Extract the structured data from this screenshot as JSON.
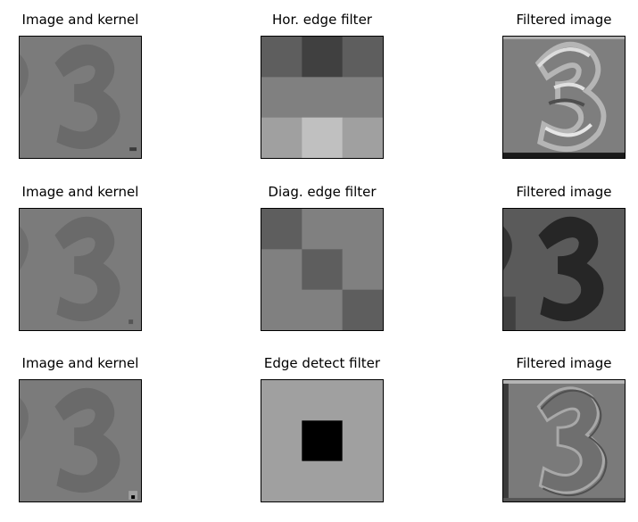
{
  "figure": {
    "rows": [
      {
        "image_title": "Image and kernel",
        "kernel_title": "Hor. edge filter",
        "filtered_title": "Filtered image",
        "kernel_grays": [
          [
            94,
            64,
            94
          ],
          [
            128,
            128,
            128
          ],
          [
            160,
            192,
            160
          ]
        ],
        "filtered_style": "horizontal-edges"
      },
      {
        "image_title": "Image and kernel",
        "kernel_title": "Diag. edge filter",
        "filtered_title": "Filtered image",
        "kernel_grays": [
          [
            94,
            128,
            128
          ],
          [
            128,
            94,
            128
          ],
          [
            128,
            128,
            94
          ]
        ],
        "filtered_style": "dark-digit"
      },
      {
        "image_title": "Image and kernel",
        "kernel_title": "Edge detect filter",
        "filtered_title": "Filtered image",
        "kernel_grays": [
          [
            160,
            160,
            160
          ],
          [
            160,
            0,
            160
          ],
          [
            160,
            160,
            160
          ]
        ],
        "filtered_style": "edge-outline"
      }
    ],
    "digit": "3",
    "colors": {
      "image_background": "#7a7a7a",
      "image_digit": "#6a6a6a",
      "axes_frame": "#000000"
    }
  }
}
